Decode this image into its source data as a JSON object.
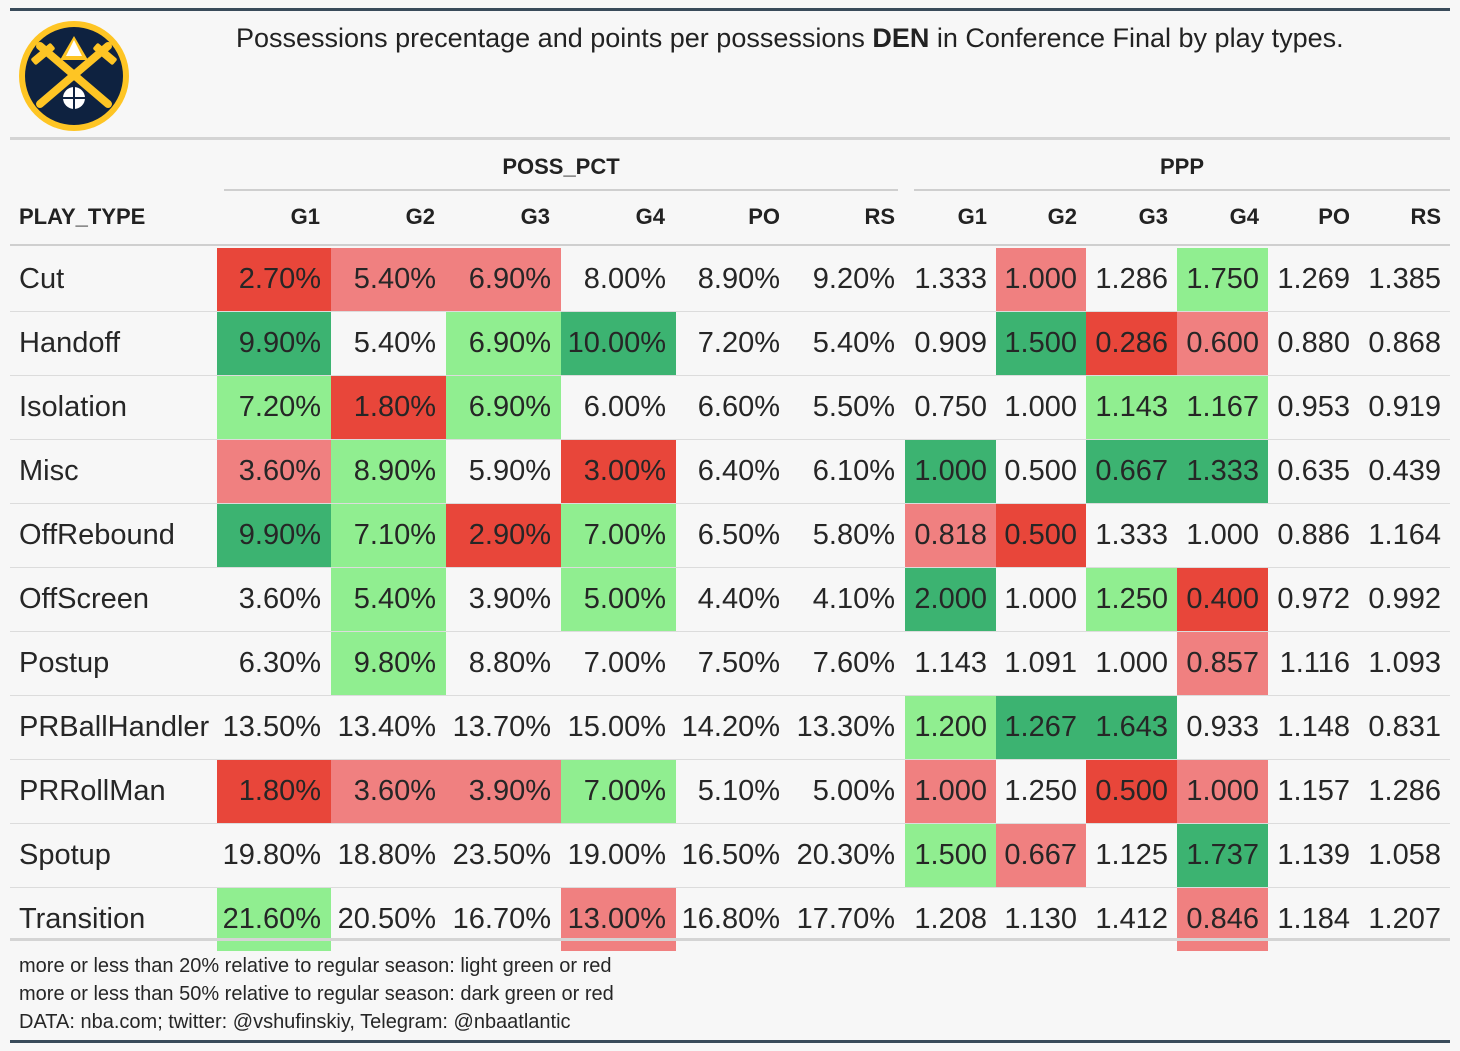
{
  "title": {
    "before": "Possessions precentage and points per possessions ",
    "team": "DEN",
    "after": " in Conference Final by play types."
  },
  "colors": {
    "light_green": "#90ee90",
    "dark_green": "#3cb371",
    "light_red": "#f08080",
    "dark_red": "#e8463a",
    "neutral": "#f7f7f7"
  },
  "chart_data": {
    "type": "table",
    "row_header": "PLAY_TYPE",
    "groups": [
      {
        "name": "POSS_PCT",
        "columns": [
          "G1",
          "G2",
          "G3",
          "G4",
          "PO",
          "RS"
        ]
      },
      {
        "name": "PPP",
        "columns": [
          "G1",
          "G2",
          "G3",
          "G4",
          "PO",
          "RS"
        ]
      }
    ],
    "rows": [
      {
        "play_type": "Cut",
        "poss_pct": [
          "2.70%",
          "5.40%",
          "6.90%",
          "8.00%",
          "8.90%",
          "9.20%"
        ],
        "poss_pct_color": [
          "dark_red",
          "light_red",
          "light_red",
          "neutral",
          "neutral",
          "neutral"
        ],
        "ppp": [
          "1.333",
          "1.000",
          "1.286",
          "1.750",
          "1.269",
          "1.385"
        ],
        "ppp_color": [
          "neutral",
          "light_red",
          "neutral",
          "light_green",
          "neutral",
          "neutral"
        ]
      },
      {
        "play_type": "Handoff",
        "poss_pct": [
          "9.90%",
          "5.40%",
          "6.90%",
          "10.00%",
          "7.20%",
          "5.40%"
        ],
        "poss_pct_color": [
          "dark_green",
          "neutral",
          "light_green",
          "dark_green",
          "neutral",
          "neutral"
        ],
        "ppp": [
          "0.909",
          "1.500",
          "0.286",
          "0.600",
          "0.880",
          "0.868"
        ],
        "ppp_color": [
          "neutral",
          "dark_green",
          "dark_red",
          "light_red",
          "neutral",
          "neutral"
        ]
      },
      {
        "play_type": "Isolation",
        "poss_pct": [
          "7.20%",
          "1.80%",
          "6.90%",
          "6.00%",
          "6.60%",
          "5.50%"
        ],
        "poss_pct_color": [
          "light_green",
          "dark_red",
          "light_green",
          "neutral",
          "neutral",
          "neutral"
        ],
        "ppp": [
          "0.750",
          "1.000",
          "1.143",
          "1.167",
          "0.953",
          "0.919"
        ],
        "ppp_color": [
          "neutral",
          "neutral",
          "light_green",
          "light_green",
          "neutral",
          "neutral"
        ]
      },
      {
        "play_type": "Misc",
        "poss_pct": [
          "3.60%",
          "8.90%",
          "5.90%",
          "3.00%",
          "6.40%",
          "6.10%"
        ],
        "poss_pct_color": [
          "light_red",
          "light_green",
          "neutral",
          "dark_red",
          "neutral",
          "neutral"
        ],
        "ppp": [
          "1.000",
          "0.500",
          "0.667",
          "1.333",
          "0.635",
          "0.439"
        ],
        "ppp_color": [
          "dark_green",
          "neutral",
          "dark_green",
          "dark_green",
          "neutral",
          "neutral"
        ]
      },
      {
        "play_type": "OffRebound",
        "poss_pct": [
          "9.90%",
          "7.10%",
          "2.90%",
          "7.00%",
          "6.50%",
          "5.80%"
        ],
        "poss_pct_color": [
          "dark_green",
          "light_green",
          "dark_red",
          "light_green",
          "neutral",
          "neutral"
        ],
        "ppp": [
          "0.818",
          "0.500",
          "1.333",
          "1.000",
          "0.886",
          "1.164"
        ],
        "ppp_color": [
          "light_red",
          "dark_red",
          "neutral",
          "neutral",
          "neutral",
          "neutral"
        ]
      },
      {
        "play_type": "OffScreen",
        "poss_pct": [
          "3.60%",
          "5.40%",
          "3.90%",
          "5.00%",
          "4.40%",
          "4.10%"
        ],
        "poss_pct_color": [
          "neutral",
          "light_green",
          "neutral",
          "light_green",
          "neutral",
          "neutral"
        ],
        "ppp": [
          "2.000",
          "1.000",
          "1.250",
          "0.400",
          "0.972",
          "0.992"
        ],
        "ppp_color": [
          "dark_green",
          "neutral",
          "light_green",
          "dark_red",
          "neutral",
          "neutral"
        ]
      },
      {
        "play_type": "Postup",
        "poss_pct": [
          "6.30%",
          "9.80%",
          "8.80%",
          "7.00%",
          "7.50%",
          "7.60%"
        ],
        "poss_pct_color": [
          "neutral",
          "light_green",
          "neutral",
          "neutral",
          "neutral",
          "neutral"
        ],
        "ppp": [
          "1.143",
          "1.091",
          "1.000",
          "0.857",
          "1.116",
          "1.093"
        ],
        "ppp_color": [
          "neutral",
          "neutral",
          "neutral",
          "light_red",
          "neutral",
          "neutral"
        ]
      },
      {
        "play_type": "PRBallHandler",
        "poss_pct": [
          "13.50%",
          "13.40%",
          "13.70%",
          "15.00%",
          "14.20%",
          "13.30%"
        ],
        "poss_pct_color": [
          "neutral",
          "neutral",
          "neutral",
          "neutral",
          "neutral",
          "neutral"
        ],
        "ppp": [
          "1.200",
          "1.267",
          "1.643",
          "0.933",
          "1.148",
          "0.831"
        ],
        "ppp_color": [
          "light_green",
          "dark_green",
          "dark_green",
          "neutral",
          "neutral",
          "neutral"
        ]
      },
      {
        "play_type": "PRRollMan",
        "poss_pct": [
          "1.80%",
          "3.60%",
          "3.90%",
          "7.00%",
          "5.10%",
          "5.00%"
        ],
        "poss_pct_color": [
          "dark_red",
          "light_red",
          "light_red",
          "light_green",
          "neutral",
          "neutral"
        ],
        "ppp": [
          "1.000",
          "1.250",
          "0.500",
          "1.000",
          "1.157",
          "1.286"
        ],
        "ppp_color": [
          "light_red",
          "neutral",
          "dark_red",
          "light_red",
          "neutral",
          "neutral"
        ]
      },
      {
        "play_type": "Spotup",
        "poss_pct": [
          "19.80%",
          "18.80%",
          "23.50%",
          "19.00%",
          "16.50%",
          "20.30%"
        ],
        "poss_pct_color": [
          "neutral",
          "neutral",
          "neutral",
          "neutral",
          "neutral",
          "neutral"
        ],
        "ppp": [
          "1.500",
          "0.667",
          "1.125",
          "1.737",
          "1.139",
          "1.058"
        ],
        "ppp_color": [
          "light_green",
          "light_red",
          "neutral",
          "dark_green",
          "neutral",
          "neutral"
        ]
      },
      {
        "play_type": "Transition",
        "poss_pct": [
          "21.60%",
          "20.50%",
          "16.70%",
          "13.00%",
          "16.80%",
          "17.70%"
        ],
        "poss_pct_color": [
          "light_green",
          "neutral",
          "neutral",
          "light_red",
          "neutral",
          "neutral"
        ],
        "ppp": [
          "1.208",
          "1.130",
          "1.412",
          "0.846",
          "1.184",
          "1.207"
        ],
        "ppp_color": [
          "neutral",
          "neutral",
          "neutral",
          "light_red",
          "neutral",
          "neutral"
        ]
      }
    ]
  },
  "footnotes": [
    "more or less than 20% relative to regular season: light green or red",
    "more or less than 50% relative to regular season: dark green or red",
    "DATA: nba.com; twitter: @vshufinskiy, Telegram: @nbaatlantic"
  ]
}
